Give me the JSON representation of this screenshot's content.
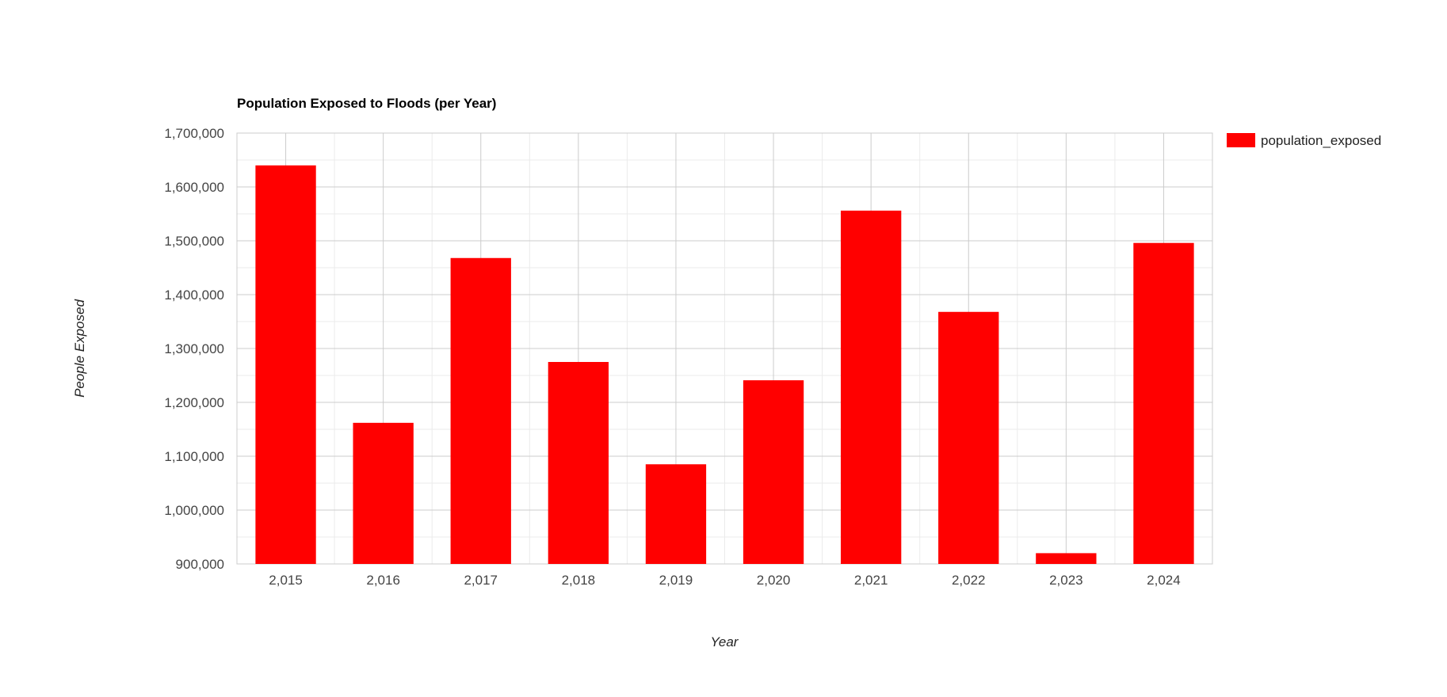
{
  "chart_data": {
    "type": "bar",
    "title": "Population Exposed to Floods (per Year)",
    "xlabel": "Year",
    "ylabel": "People Exposed",
    "categories": [
      "2,015",
      "2,016",
      "2,017",
      "2,018",
      "2,019",
      "2,020",
      "2,021",
      "2,022",
      "2,023",
      "2,024"
    ],
    "series": [
      {
        "name": "population_exposed",
        "color": "#ff0000",
        "values": [
          1640000,
          1162000,
          1468000,
          1275000,
          1085000,
          1241000,
          1556000,
          1368000,
          920000,
          1496000
        ]
      }
    ],
    "ylim": [
      900000,
      1700000
    ],
    "yticks": [
      {
        "value": 900000,
        "label": "900,000"
      },
      {
        "value": 1000000,
        "label": "1,000,000"
      },
      {
        "value": 1100000,
        "label": "1,100,000"
      },
      {
        "value": 1200000,
        "label": "1,200,000"
      },
      {
        "value": 1300000,
        "label": "1,300,000"
      },
      {
        "value": 1400000,
        "label": "1,400,000"
      },
      {
        "value": 1500000,
        "label": "1,500,000"
      },
      {
        "value": 1600000,
        "label": "1,600,000"
      },
      {
        "value": 1700000,
        "label": "1,700,000"
      }
    ],
    "grid": true,
    "legend_position": "top-right"
  }
}
